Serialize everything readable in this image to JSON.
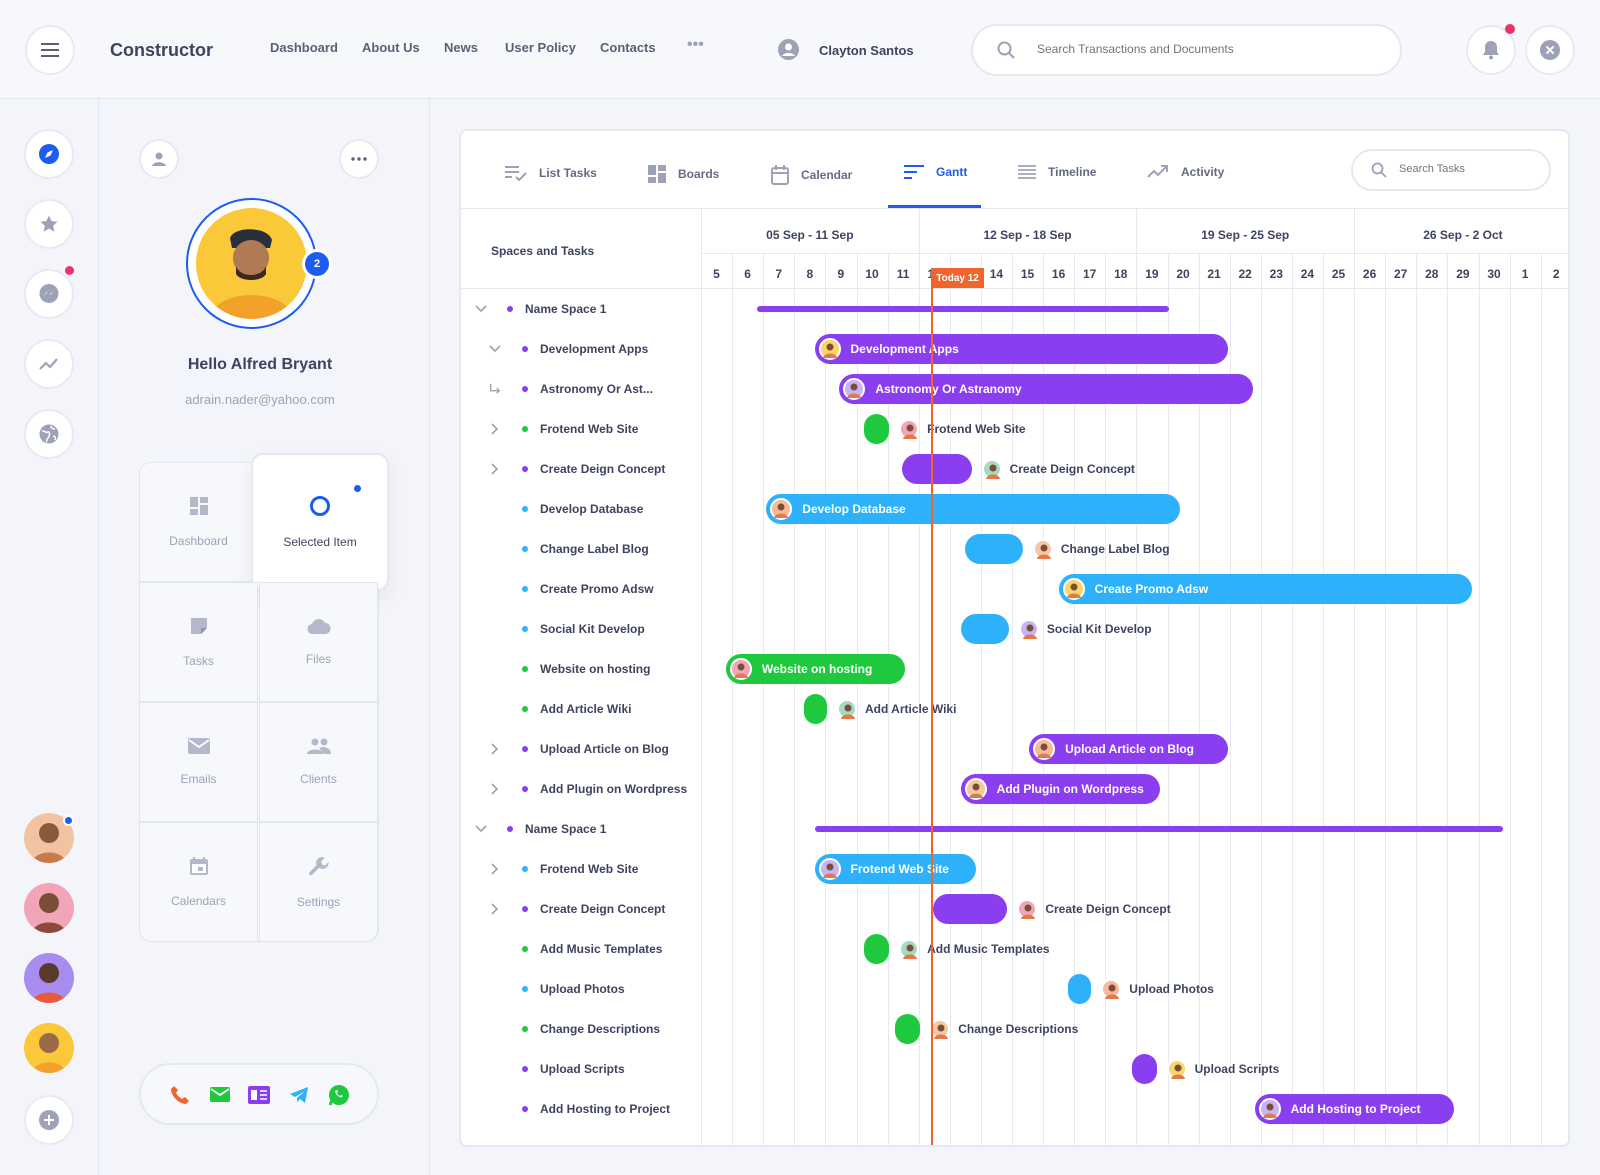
{
  "app": {
    "brand": "Constructor"
  },
  "topnav": [
    "Dashboard",
    "About Us",
    "News",
    "User Policy",
    "Contacts"
  ],
  "user": {
    "name": "Clayton Santos"
  },
  "search": {
    "placeholder": "Search Transactions and Documents"
  },
  "profile": {
    "greeting": "Hello Alfred Bryant",
    "email": "adrain.nader@yahoo.com",
    "badge": "2"
  },
  "tiles": [
    {
      "label": "Dashboard",
      "icon": "grid-icon"
    },
    {
      "label": "Selected Item",
      "icon": "circle-icon"
    },
    {
      "label": "Tasks",
      "icon": "note-icon"
    },
    {
      "label": "Files",
      "icon": "cloud-icon"
    },
    {
      "label": "Emails",
      "icon": "mail-icon"
    },
    {
      "label": "Clients",
      "icon": "people-icon"
    },
    {
      "label": "Calendars",
      "icon": "calendar-icon"
    },
    {
      "label": "Settings",
      "icon": "wrench-icon"
    }
  ],
  "tabs": [
    {
      "label": "List Tasks",
      "icon": "list-check-icon"
    },
    {
      "label": "Boards",
      "icon": "boards-icon"
    },
    {
      "label": "Calendar",
      "icon": "calendar-icon"
    },
    {
      "label": "Gantt",
      "icon": "gantt-icon",
      "active": true
    },
    {
      "label": "Timeline",
      "icon": "timeline-icon"
    },
    {
      "label": "Activity",
      "icon": "trend-icon"
    }
  ],
  "task_search": {
    "placeholder": "Search Tasks"
  },
  "gantt": {
    "column_header": "Spaces and Tasks",
    "weeks": [
      "05 Sep - 11 Sep",
      "12 Sep - 18 Sep",
      "19 Sep - 25 Sep",
      "26 Sep - 2 Oct"
    ],
    "days": [
      "5",
      "6",
      "7",
      "8",
      "9",
      "10",
      "11",
      "12",
      "13",
      "14",
      "15",
      "16",
      "17",
      "18",
      "19",
      "20",
      "21",
      "22",
      "23",
      "24",
      "25",
      "26",
      "27",
      "28",
      "29",
      "30",
      "1",
      "2"
    ],
    "today_label": "Today 12",
    "rows": [
      {
        "label": "Name Space 1",
        "level": 0,
        "color": "purple",
        "bar": {
          "start": 6.8,
          "end": 20.05
        }
      },
      {
        "label": "Development Apps",
        "level": 1,
        "color": "purple",
        "expand": "down",
        "bar": {
          "start": 8.65,
          "end": 21.95,
          "text": "Development Apps"
        }
      },
      {
        "label": "Astronomy Or Ast...",
        "level": 1,
        "color": "purple",
        "expand": "sub",
        "bar": {
          "start": 9.45,
          "end": 22.75,
          "text": "Astronomy Or Astranomy"
        }
      },
      {
        "label": "Frotend Web Site",
        "level": 1,
        "color": "green",
        "expand": "right",
        "bar": {
          "start": 10.25,
          "end": 11.05,
          "text": "Frotend Web Site"
        }
      },
      {
        "label": "Create Deign Concept",
        "level": 1,
        "color": "purple",
        "expand": "right",
        "bar": {
          "start": 11.45,
          "end": 13.7,
          "text": "Create Deign Concept"
        }
      },
      {
        "label": "Develop Database",
        "level": 1,
        "color": "blue",
        "bar": {
          "start": 7.1,
          "end": 20.4,
          "text": "Develop Database"
        }
      },
      {
        "label": "Change Label Blog",
        "level": 1,
        "color": "blue",
        "bar": {
          "start": 13.5,
          "end": 15.35,
          "text": "Change Label Blog"
        }
      },
      {
        "label": "Create Promo Adsw",
        "level": 1,
        "color": "blue",
        "bar": {
          "start": 16.5,
          "end": 29.8,
          "text": "Create Promo Adsw"
        }
      },
      {
        "label": "Social Kit Develop",
        "level": 1,
        "color": "blue",
        "bar": {
          "start": 13.35,
          "end": 14.9,
          "text": "Social Kit Develop"
        }
      },
      {
        "label": "Website on hosting",
        "level": 1,
        "color": "green",
        "bar": {
          "start": 5.8,
          "end": 11.55,
          "text": "Website on hosting"
        }
      },
      {
        "label": "Add Article Wiki",
        "level": 1,
        "color": "green",
        "bar": {
          "start": 8.3,
          "end": 9.05,
          "text": "Add Article Wiki"
        }
      },
      {
        "label": "Upload Article on Blog",
        "level": 1,
        "color": "purple",
        "expand": "right",
        "bar": {
          "start": 15.55,
          "end": 21.95,
          "text": "Upload Article on Blog"
        }
      },
      {
        "label": "Add Plugin on Wordpress",
        "level": 1,
        "color": "purple",
        "expand": "right",
        "bar": {
          "start": 13.35,
          "end": 19.75,
          "text": "Add Plugin on Wordpress"
        }
      },
      {
        "label": "Name Space 1",
        "level": 0,
        "color": "purple",
        "bar": {
          "start": 8.65,
          "end": 30.8
        }
      },
      {
        "label": "Frotend Web Site",
        "level": 1,
        "color": "blue",
        "expand": "right",
        "bar": {
          "start": 8.65,
          "end": 13.85,
          "text": "Frotend Web Site"
        }
      },
      {
        "label": "Create Deign Concept",
        "level": 1,
        "color": "purple",
        "expand": "right",
        "bar": {
          "start": 12.45,
          "end": 14.85,
          "text": "Create Deign Concept"
        }
      },
      {
        "label": "Add Music Templates",
        "level": 1,
        "color": "green",
        "bar": {
          "start": 10.25,
          "end": 11.05,
          "text": "Add Music Templates"
        }
      },
      {
        "label": "Upload Photos",
        "level": 1,
        "color": "blue",
        "bar": {
          "start": 16.8,
          "end": 17.55,
          "text": "Upload Photos"
        }
      },
      {
        "label": "Change Descriptions",
        "level": 1,
        "color": "green",
        "bar": {
          "start": 11.25,
          "end": 12.05,
          "text": "Change Descriptions"
        }
      },
      {
        "label": "Upload Scripts",
        "level": 1,
        "color": "purple",
        "bar": {
          "start": 18.85,
          "end": 19.65,
          "text": "Upload Scripts"
        }
      },
      {
        "label": "Add Hosting to Project",
        "level": 1,
        "color": "purple",
        "bar": {
          "start": 22.8,
          "end": 29.2,
          "text": "Add Hosting to Project"
        }
      }
    ]
  },
  "colors": {
    "purple": "#8b3df0",
    "blue": "#2eb1fb",
    "green": "#1ec93e",
    "accent": "#1e5cf0",
    "today": "#f0642e",
    "danger": "#f0306a"
  }
}
